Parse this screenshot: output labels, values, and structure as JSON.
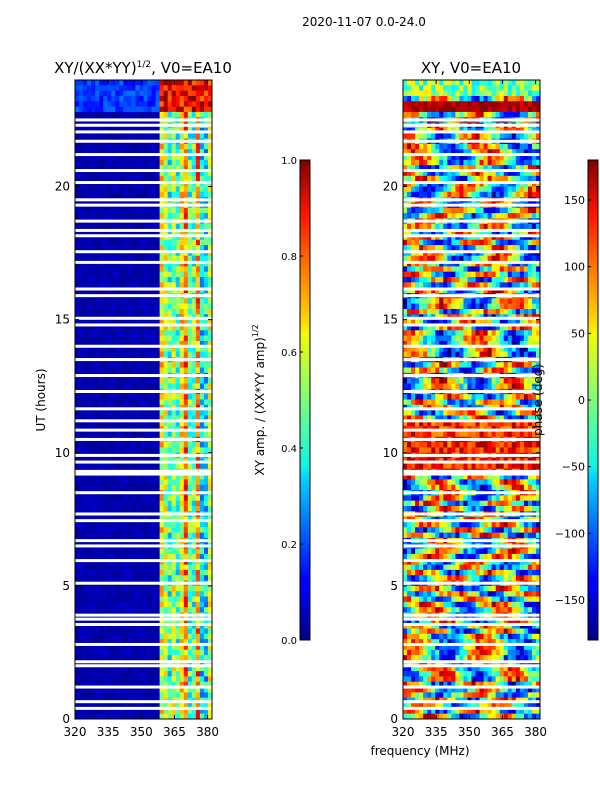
{
  "suptitle": "2020-11-07 0.0-24.0",
  "shared": {
    "xlabel": "frequency (MHz)",
    "ylabel": "UT (hours)"
  },
  "chart_data": [
    {
      "type": "heatmap",
      "title": "XY/(XX*YY)",
      "title_exp": "1/2",
      "title_suffix": ", V0=EA10",
      "xlim": [
        320,
        382
      ],
      "ylim": [
        0,
        24
      ],
      "xticks": [
        320,
        335,
        350,
        365,
        380
      ],
      "yticks": [
        0,
        5,
        10,
        15,
        20
      ],
      "colorbar": {
        "label": "XY amp. / (XX*YY amp)",
        "label_exp": "1/2",
        "range": [
          0.0,
          1.0
        ],
        "ticks": [
          "0.0",
          "0.2",
          "0.4",
          "0.6",
          "0.8",
          "1.0"
        ],
        "colormap": "jet"
      },
      "signal_band_mhz": [
        359,
        382
      ],
      "gap_hours": [
        0.4,
        0.65,
        1.2,
        2.0,
        2.15,
        2.8,
        3.55,
        3.75,
        3.9,
        5.1,
        5.95,
        6.5,
        6.7,
        7.45,
        7.7,
        8.5,
        9.2,
        9.3,
        9.65,
        9.9,
        10.5,
        10.85,
        11.2,
        11.65,
        12.3,
        12.9,
        13.5,
        14.0,
        14.8,
        15.05,
        15.9,
        16.15,
        17.15,
        17.55,
        18.15,
        18.35,
        18.7,
        19.3,
        19.5,
        20.15,
        20.6,
        21.2,
        21.7,
        22.05,
        22.3,
        22.5
      ]
    },
    {
      "type": "heatmap",
      "title": "XY, V0=EA10",
      "xlim": [
        320,
        382
      ],
      "ylim": [
        0,
        24
      ],
      "xticks": [
        320,
        335,
        350,
        365,
        380
      ],
      "yticks": [
        0,
        5,
        10,
        15,
        20
      ],
      "colorbar": {
        "label": "phase (deg)",
        "range": [
          -180,
          180
        ],
        "ticks": [
          "−150",
          "−100",
          "−50",
          "0",
          "50",
          "100",
          "150"
        ],
        "tick_values": [
          -150,
          -100,
          -50,
          0,
          50,
          100,
          150
        ],
        "colormap": "jet"
      },
      "gap_hours": [
        0.4,
        0.65,
        1.2,
        2.0,
        2.15,
        2.8,
        3.55,
        3.75,
        3.9,
        5.1,
        5.95,
        6.5,
        6.7,
        7.45,
        7.7,
        8.5,
        9.2,
        9.3,
        9.65,
        9.9,
        10.5,
        10.85,
        11.2,
        11.65,
        12.3,
        12.9,
        13.5,
        14.0,
        14.8,
        15.05,
        15.9,
        16.15,
        17.15,
        17.55,
        18.15,
        18.35,
        18.7,
        19.3,
        19.5,
        20.15,
        20.6,
        21.2,
        21.7,
        22.05,
        22.3,
        22.5
      ]
    }
  ]
}
